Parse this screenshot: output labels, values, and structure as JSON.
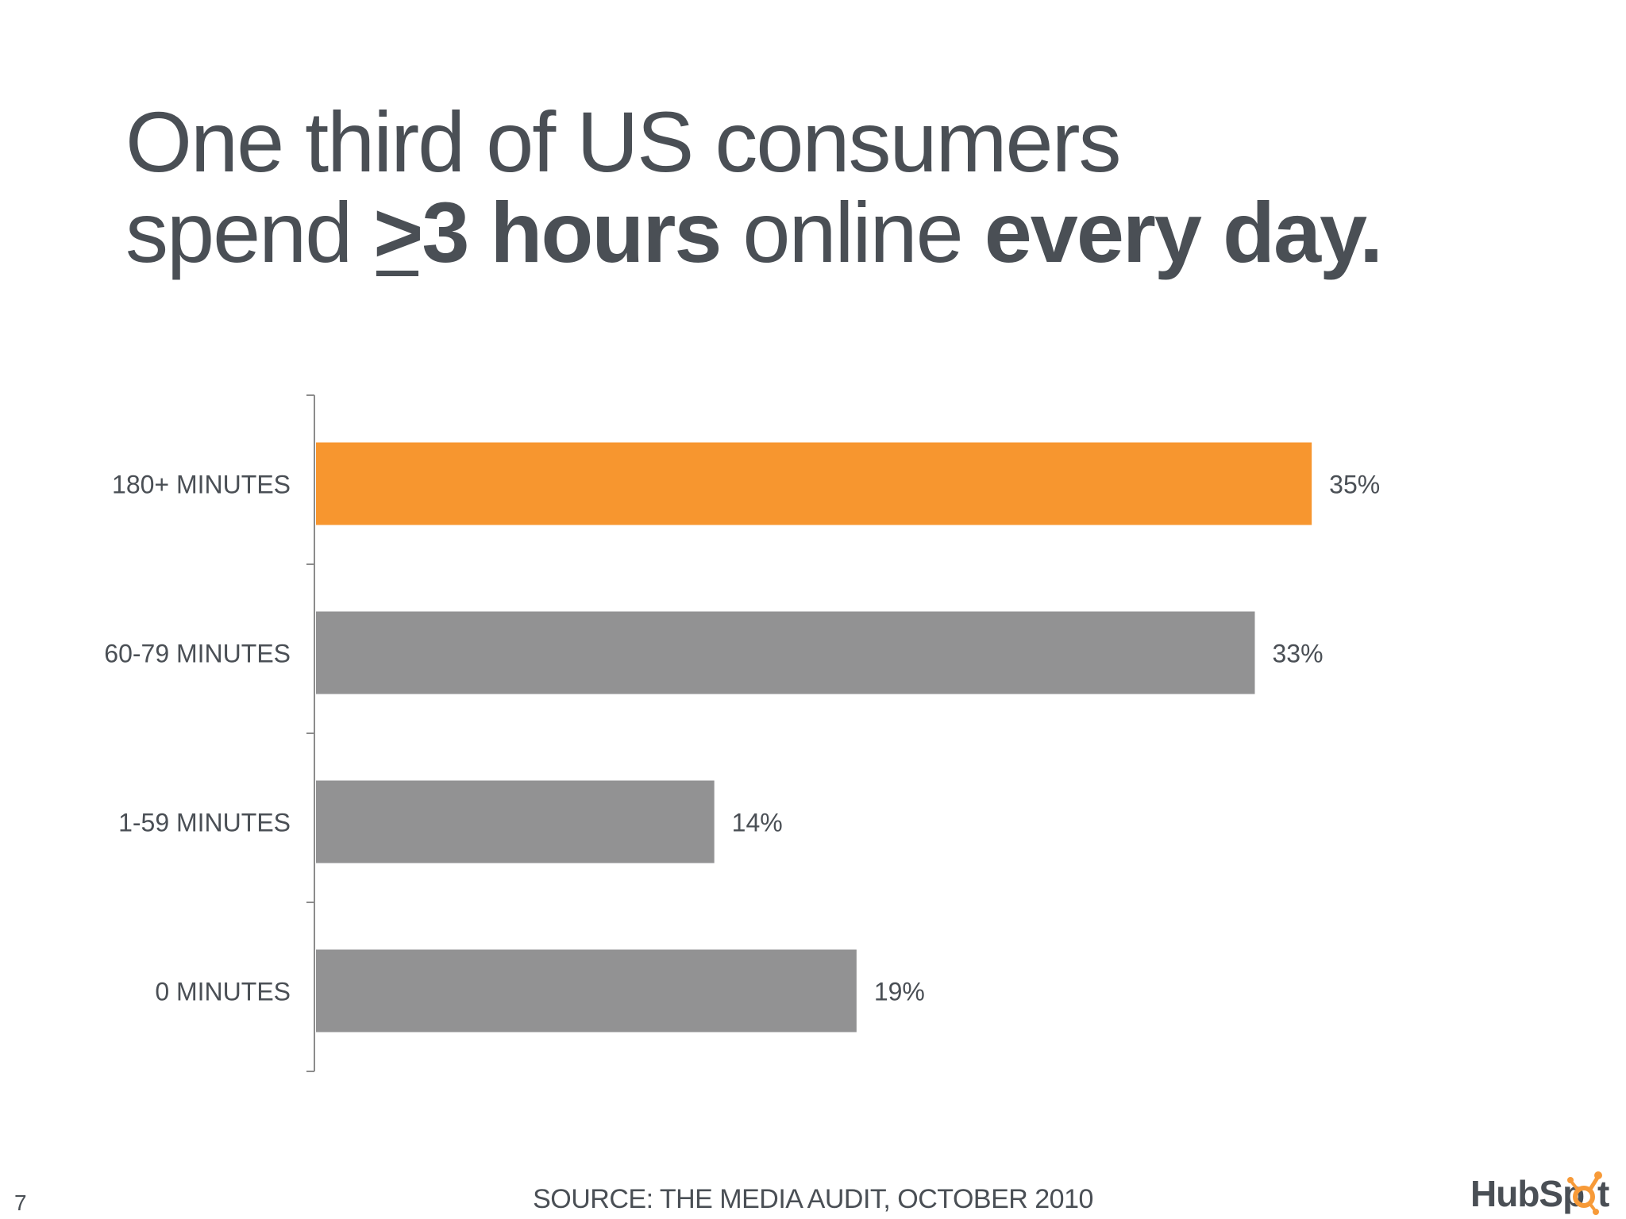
{
  "slide": {
    "title_line1": "One third of US consumers",
    "title_line2_a": "spend ",
    "title_line2_ge": ">",
    "title_line2_bold1": "3 hours",
    "title_line2_b": " online ",
    "title_line2_bold2": "every day.",
    "source": "SOURCE: THE MEDIA AUDIT, OCTOBER 2010",
    "page_number": "7",
    "logo": {
      "text_a": "HubSp",
      "text_b": "t",
      "icon": "sprocket-icon",
      "color_text": "#4a4f55",
      "color_accent": "#f79a38"
    }
  },
  "chart_data": {
    "type": "bar",
    "orientation": "horizontal",
    "categories": [
      "180+ MINUTES",
      "60-79 MINUTES",
      "1-59 MINUTES",
      "0 MINUTES"
    ],
    "values": [
      35,
      33,
      14,
      19
    ],
    "value_labels": [
      "35%",
      "33%",
      "14%",
      "19%"
    ],
    "unit": "%",
    "xlim": [
      0,
      36
    ],
    "grid": false,
    "legend": "none",
    "colors": [
      "#f7962f",
      "#929293",
      "#929293",
      "#929293"
    ],
    "axis_color": "#8c8c8c",
    "label_color": "#4a4f55"
  }
}
